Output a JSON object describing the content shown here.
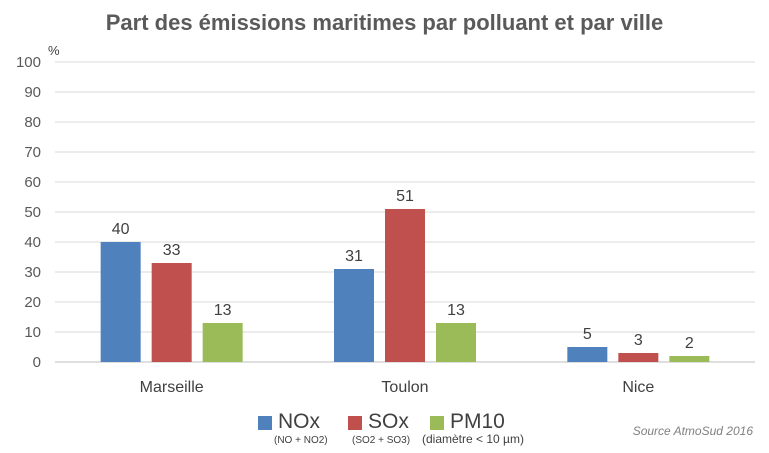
{
  "chart_data": {
    "type": "bar",
    "title": "Part des émissions maritimes par polluant et par ville",
    "ylabel": "%",
    "xlabel": "",
    "ylim": [
      0,
      100
    ],
    "yticks": [
      0,
      10,
      20,
      30,
      40,
      50,
      60,
      70,
      80,
      90,
      100
    ],
    "grid": true,
    "legend_position": "bottom",
    "categories": [
      "Marseille",
      "Toulon",
      "Nice"
    ],
    "series": [
      {
        "name": "NOx",
        "subtitle": "(NO + NO2)",
        "color": "#4f81bd",
        "values": [
          40,
          31,
          5
        ]
      },
      {
        "name": "SOx",
        "subtitle": "(SO2 + SO3)",
        "color": "#c0504d",
        "values": [
          33,
          51,
          3
        ]
      },
      {
        "name": "PM10",
        "subtitle": "(diamètre < 10 µm)",
        "color": "#9bbb59",
        "values": [
          13,
          13,
          2
        ]
      }
    ],
    "source": "Source AtmoSud 2016"
  }
}
